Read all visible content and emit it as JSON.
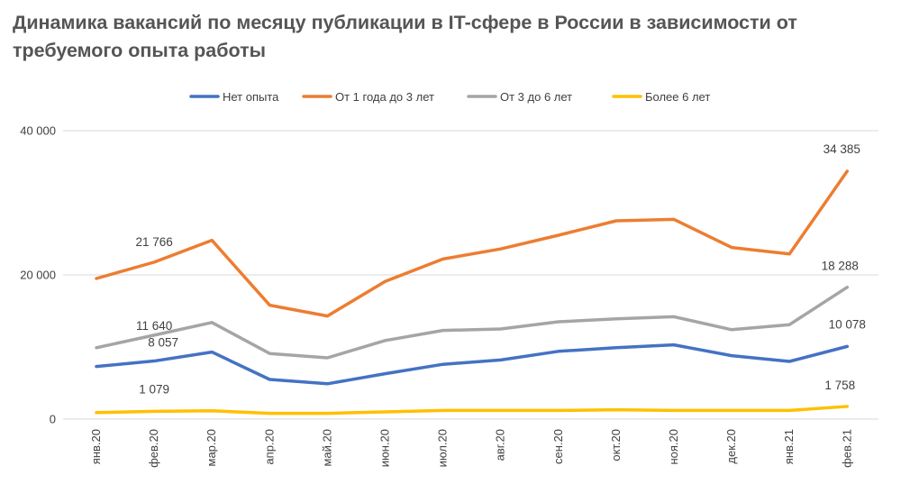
{
  "chart_data": {
    "type": "line",
    "title": "Динамика вакансий по месяцу публикации в IT-сфере в России в зависимости от требуемого опыта работы",
    "categories": [
      "янв.20",
      "фев.20",
      "мар.20",
      "апр.20",
      "май.20",
      "июн.20",
      "июл.20",
      "авг.20",
      "сен.20",
      "окт.20",
      "ноя.20",
      "дек.20",
      "янв.21",
      "фев.21"
    ],
    "ylim": [
      0,
      40000
    ],
    "yticks": [
      0,
      20000,
      40000
    ],
    "ytick_labels": [
      "0",
      "20 000",
      "40 000"
    ],
    "grid": true,
    "legend_position": "top",
    "series": [
      {
        "name": "Нет опыта",
        "color": "#4472C4",
        "values": [
          7300,
          8057,
          9300,
          5500,
          4900,
          6300,
          7600,
          8200,
          9400,
          9900,
          10300,
          8800,
          8000,
          10078
        ],
        "labels": [
          {
            "index": 1,
            "text": "8 057"
          },
          {
            "index": 13,
            "text": "10 078"
          }
        ]
      },
      {
        "name": "От 1 года до 3 лет",
        "color": "#ED7D31",
        "values": [
          19500,
          21766,
          24800,
          15800,
          14300,
          19100,
          22200,
          23600,
          25500,
          27500,
          27700,
          23800,
          22900,
          34385
        ],
        "labels": [
          {
            "index": 1,
            "text": "21 766"
          },
          {
            "index": 13,
            "text": "34 385"
          }
        ]
      },
      {
        "name": "От 3 до 6 лет",
        "color": "#A5A5A5",
        "values": [
          9900,
          11640,
          13400,
          9100,
          8500,
          10900,
          12300,
          12500,
          13500,
          13900,
          14200,
          12400,
          13100,
          18288
        ],
        "labels": [
          {
            "index": 1,
            "text": "11 640"
          },
          {
            "index": 13,
            "text": "18 288"
          }
        ]
      },
      {
        "name": "Более 6 лет",
        "color": "#FFC000",
        "values": [
          900,
          1079,
          1150,
          800,
          800,
          1000,
          1200,
          1200,
          1200,
          1300,
          1200,
          1200,
          1200,
          1758
        ],
        "labels": [
          {
            "index": 1,
            "text": "1 079"
          },
          {
            "index": 13,
            "text": "1 758"
          }
        ]
      }
    ]
  }
}
